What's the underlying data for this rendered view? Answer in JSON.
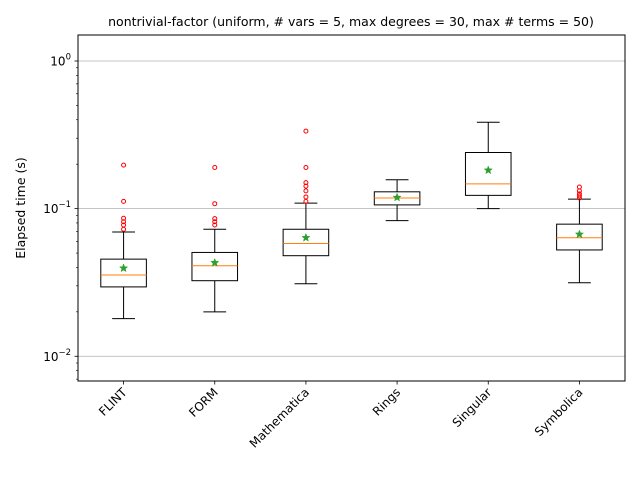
{
  "chart_data": {
    "type": "box",
    "title": "nontrivial-factor (uniform, # vars = 5, max degrees = 30, max # terms = 50)",
    "xlabel": "",
    "ylabel": "Elapsed time (s)",
    "yscale": "log",
    "ylim": [
      0.0068,
      1.5
    ],
    "yticks": [
      {
        "value": 0.01,
        "base": "10",
        "exp": "−2"
      },
      {
        "value": 0.1,
        "base": "10",
        "exp": "−1"
      },
      {
        "value": 1,
        "base": "10",
        "exp": "0"
      }
    ],
    "grid": "y-major",
    "categories": [
      "FLINT",
      "FORM",
      "Mathematica",
      "Rings",
      "Singular",
      "Symbolica"
    ],
    "boxes": [
      {
        "whisker_low": 0.018,
        "q1": 0.0295,
        "median": 0.0355,
        "q3": 0.0455,
        "whisker_high": 0.0695,
        "mean": 0.0395,
        "outliers": [
          0.0725,
          0.0775,
          0.0815,
          0.086,
          0.112,
          0.197
        ]
      },
      {
        "whisker_low": 0.02,
        "q1": 0.0325,
        "median": 0.041,
        "q3": 0.0505,
        "whisker_high": 0.0725,
        "mean": 0.043,
        "outliers": [
          0.0775,
          0.0815,
          0.0855,
          0.108,
          0.19
        ]
      },
      {
        "whisker_low": 0.031,
        "q1": 0.048,
        "median": 0.058,
        "q3": 0.0725,
        "whisker_high": 0.109,
        "mean": 0.0635,
        "outliers": [
          0.112,
          0.12,
          0.132,
          0.142,
          0.15,
          0.19,
          0.335
        ]
      },
      {
        "whisker_low": 0.083,
        "q1": 0.106,
        "median": 0.118,
        "q3": 0.13,
        "whisker_high": 0.157,
        "mean": 0.119,
        "outliers": []
      },
      {
        "whisker_low": 0.1,
        "q1": 0.123,
        "median": 0.147,
        "q3": 0.24,
        "whisker_high": 0.385,
        "mean": 0.182,
        "outliers": []
      },
      {
        "whisker_low": 0.0315,
        "q1": 0.0525,
        "median": 0.0635,
        "q3": 0.0785,
        "whisker_high": 0.116,
        "mean": 0.067,
        "outliers": [
          0.118,
          0.122,
          0.126,
          0.132,
          0.14
        ]
      }
    ],
    "colors": {
      "box": "#000000",
      "median": "#ff7f0e",
      "mean_marker": "#2ca02c",
      "outlier": "#ff0000",
      "grid": "#b0b0b0"
    }
  }
}
